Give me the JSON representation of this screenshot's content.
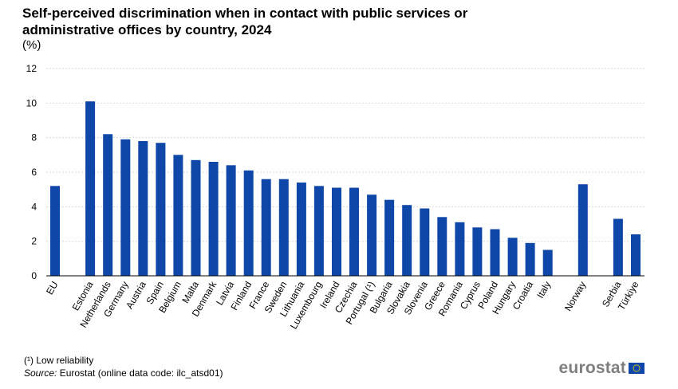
{
  "title": "Self-perceived discrimination when in contact with public services or administrative offices by country, 2024",
  "unit": "(%)",
  "footnote": "(¹) Low reliability",
  "source_label": "Source:",
  "source_text": "Eurostat (online data code: ilc_atsd01)",
  "logo_text": "eurostat",
  "colors": {
    "bar": "#0e47a8",
    "grid": "#d9d9d9",
    "axis": "#000000",
    "logo": "#7f7f7f",
    "flag": "#0e47a8",
    "stars": "#ffdd00"
  },
  "chart_data": {
    "type": "bar",
    "title": "Self-perceived discrimination when in contact with public services or administrative offices by country, 2024",
    "ylabel": "(%)",
    "xlabel": "",
    "ylim": [
      0,
      12
    ],
    "yticks": [
      0,
      2,
      4,
      6,
      8,
      10,
      12
    ],
    "grid": true,
    "categories": [
      "EU",
      "",
      "Estonia",
      "Netherlands",
      "Germany",
      "Austria",
      "Spain",
      "Belgium",
      "Malta",
      "Denmark",
      "Latvia",
      "Finland",
      "France",
      "Sweden",
      "Lithuania",
      "Luxembourg",
      "Ireland",
      "Czechia",
      "Portugal (¹)",
      "Bulgaria",
      "Slovakia",
      "Slovenia",
      "Greece",
      "Romania",
      "Cyprus",
      "Poland",
      "Hungary",
      "Croatia",
      "Italy",
      "",
      "Norway",
      "",
      "Serbia",
      "Türkiye"
    ],
    "values": [
      5.2,
      null,
      10.1,
      8.2,
      7.9,
      7.8,
      7.7,
      7.0,
      6.7,
      6.6,
      6.4,
      6.1,
      5.6,
      5.6,
      5.4,
      5.2,
      5.1,
      5.1,
      4.7,
      4.4,
      4.1,
      3.9,
      3.4,
      3.1,
      2.8,
      2.7,
      2.2,
      1.9,
      1.5,
      null,
      5.3,
      null,
      3.3,
      2.4
    ]
  }
}
